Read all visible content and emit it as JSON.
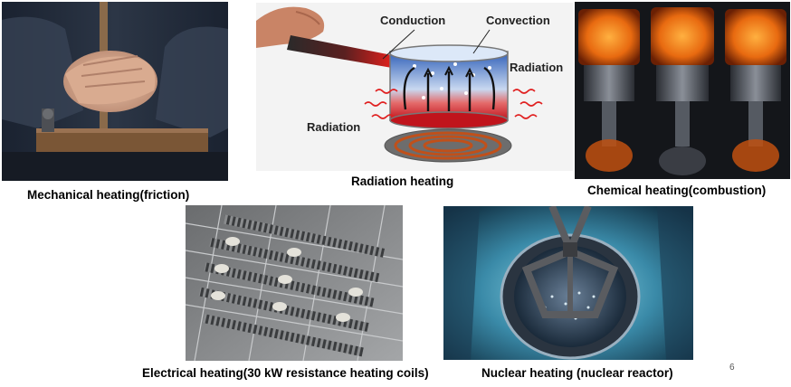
{
  "slide": {
    "page_number": "6"
  },
  "panels": {
    "mechanical": {
      "caption": "Mechanical heating(friction)"
    },
    "radiation": {
      "caption": "Radiation heating",
      "labels": {
        "conduction": "Conduction",
        "convection": "Convection",
        "radiation_right": "Radiation",
        "radiation_left": "Radiation"
      }
    },
    "chemical": {
      "caption": "Chemical heating(combustion)"
    },
    "electrical": {
      "caption": "Electrical heating(30 kW resistance heating coils)"
    },
    "nuclear": {
      "caption": "Nuclear heating (nuclear reactor)"
    }
  }
}
